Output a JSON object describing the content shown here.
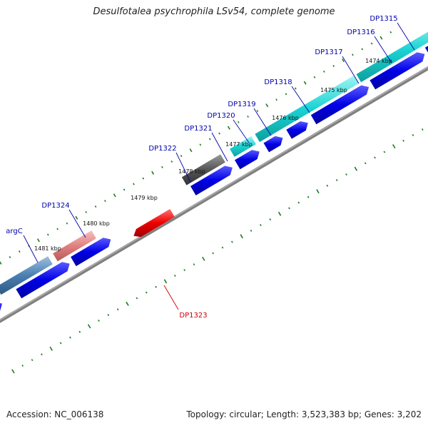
{
  "title": "Desulfotalea psychrophila LSv54, complete genome",
  "footer": {
    "accession": "Accession: NC_006138",
    "summary": "Topology: circular; Length: 3,523,383 bp; Genes: 3,202"
  },
  "colors": {
    "cds_forward": "#0000e6",
    "backbone": "#808080",
    "tick_green": "#1f7a1f",
    "label_blue": "#0000aa",
    "label_red": "#cc0000",
    "feature_cyan": "#19d2d2",
    "feature_pink": "#e08080",
    "feature_steelblue": "#4a7fb0",
    "feature_gray": "#555555",
    "feature_red": "#ee0000"
  },
  "kbp_labels": [
    "1474 kbp",
    "1475 kbp",
    "1476 kbp",
    "1477 kbp",
    "1478 kbp",
    "1479 kbp",
    "1480 kbp",
    "1481 kbp"
  ],
  "gene_labels": [
    {
      "name": "DP1315",
      "color": "blue"
    },
    {
      "name": "DP1316",
      "color": "blue"
    },
    {
      "name": "DP1317",
      "color": "blue"
    },
    {
      "name": "DP1318",
      "color": "blue"
    },
    {
      "name": "DP1319",
      "color": "blue"
    },
    {
      "name": "DP1320",
      "color": "blue"
    },
    {
      "name": "DP1321",
      "color": "blue"
    },
    {
      "name": "DP1322",
      "color": "blue"
    },
    {
      "name": "DP1324",
      "color": "blue"
    },
    {
      "name": "argC",
      "color": "blue"
    },
    {
      "name": "DP1323",
      "color": "red"
    }
  ]
}
